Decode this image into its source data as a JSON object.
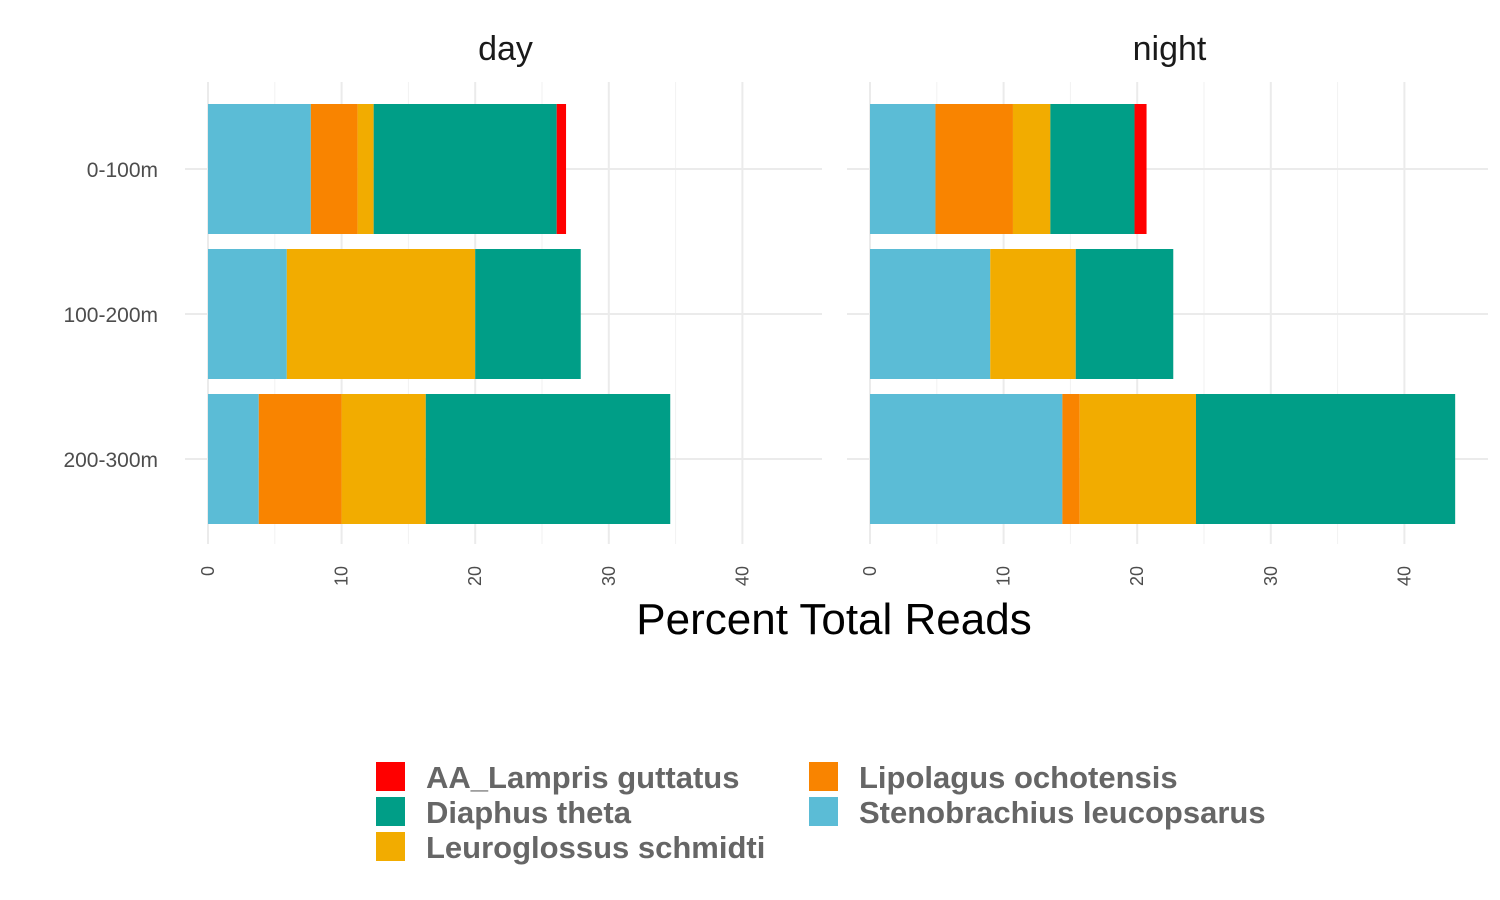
{
  "chart_data": {
    "type": "bar",
    "orientation": "horizontal",
    "stacked": true,
    "xlabel": "Percent Total Reads",
    "ylabel": "",
    "xlim": [
      0,
      44.5
    ],
    "xticks": [
      0,
      10,
      20,
      30,
      40
    ],
    "grid": true,
    "legend_position": "bottom",
    "categories": [
      "0-100m",
      "100-200m",
      "200-300m"
    ],
    "stack_order": [
      "Stenobrachius leucopsarus",
      "Lipolagus ochotensis",
      "Leuroglossus schmidti",
      "Diaphus theta",
      "AA_Lampris guttatus"
    ],
    "legend": [
      {
        "name": "AA_Lampris guttatus",
        "color": "#ff0000"
      },
      {
        "name": "Diaphus theta",
        "color": "#009e87"
      },
      {
        "name": "Leuroglossus schmidti",
        "color": "#f2ac00"
      },
      {
        "name": "Lipolagus ochotensis",
        "color": "#f98400"
      },
      {
        "name": "Stenobrachius leucopsarus",
        "color": "#5bbcd6"
      }
    ],
    "facets": [
      {
        "title": "day",
        "series": [
          {
            "name": "Stenobrachius leucopsarus",
            "values": [
              7.7,
              5.9,
              3.8
            ]
          },
          {
            "name": "Lipolagus ochotensis",
            "values": [
              3.5,
              0,
              6.2
            ]
          },
          {
            "name": "Leuroglossus schmidti",
            "values": [
              1.2,
              14.1,
              6.3
            ]
          },
          {
            "name": "Diaphus theta",
            "values": [
              13.7,
              7.9,
              18.3
            ]
          },
          {
            "name": "AA_Lampris guttatus",
            "values": [
              0.7,
              0,
              0
            ]
          }
        ]
      },
      {
        "title": "night",
        "series": [
          {
            "name": "Stenobrachius leucopsarus",
            "values": [
              4.9,
              9.0,
              14.4
            ]
          },
          {
            "name": "Lipolagus ochotensis",
            "values": [
              5.8,
              0,
              1.3
            ]
          },
          {
            "name": "Leuroglossus schmidti",
            "values": [
              2.8,
              6.4,
              8.7
            ]
          },
          {
            "name": "Diaphus theta",
            "values": [
              6.3,
              7.3,
              19.4
            ]
          },
          {
            "name": "AA_Lampris guttatus",
            "values": [
              0.9,
              0,
              0
            ]
          }
        ]
      }
    ]
  }
}
